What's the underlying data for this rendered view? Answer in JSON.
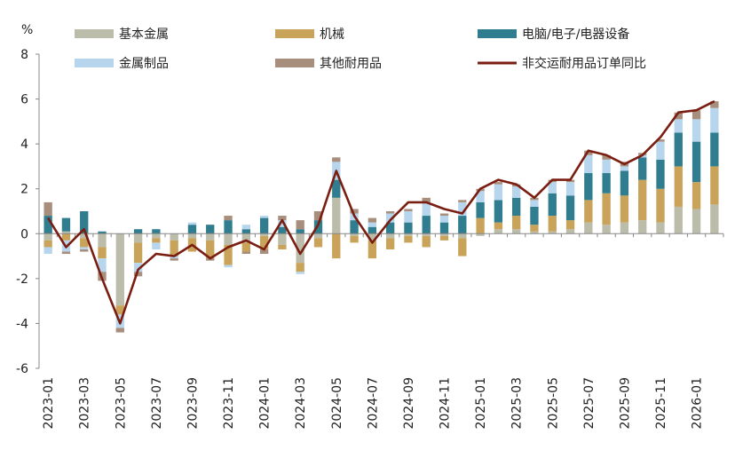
{
  "chart_data": {
    "type": "bar",
    "title": "",
    "xlabel": "",
    "ylabel": "%",
    "ylim": [
      -6,
      8
    ],
    "yticks": [
      8,
      6,
      4,
      2,
      0,
      -2,
      -4,
      -6
    ],
    "categories": [
      "2023-01",
      "2023-02",
      "2023-03",
      "2023-04",
      "2023-05",
      "2023-06",
      "2023-07",
      "2023-08",
      "2023-09",
      "2023-10",
      "2023-11",
      "2023-12",
      "2024-01",
      "2024-02",
      "2024-03",
      "2024-04",
      "2024-05",
      "2024-06",
      "2024-07",
      "2024-08",
      "2024-09",
      "2024-10",
      "2024-11",
      "2024-12",
      "2025-01",
      "2025-02",
      "2025-03",
      "2025-04",
      "2025-05",
      "2025-06",
      "2025-07",
      "2025-08",
      "2025-09",
      "2025-10",
      "2025-11",
      "2025-12",
      "2026-01",
      "2026-02"
    ],
    "x_tick_labels": [
      "2023-01",
      "2023-03",
      "2023-05",
      "2023-07",
      "2023-09",
      "2023-11",
      "2024-01",
      "2024-03",
      "2024-05",
      "2024-07",
      "2024-09",
      "2024-11",
      "2025-01",
      "2025-03",
      "2025-05",
      "2025-07",
      "2025-09",
      "2025-11",
      "2026-01"
    ],
    "legend_position": "top",
    "grid": false,
    "series": [
      {
        "name": "基本金属",
        "kind": "bar",
        "color": "#BCBCAA",
        "values": [
          -0.3,
          0.1,
          -0.2,
          -0.6,
          -3.2,
          -0.4,
          -0.2,
          -0.3,
          -0.2,
          -0.3,
          -0.5,
          -0.4,
          -0.1,
          -0.5,
          -1.3,
          -0.2,
          1.6,
          -0.1,
          -0.3,
          -0.2,
          -0.1,
          -0.1,
          -0.1,
          -0.2,
          -0.1,
          0.2,
          0.2,
          0.1,
          0.1,
          0.2,
          0.5,
          0.4,
          0.5,
          0.6,
          0.5,
          1.2,
          1.1,
          1.3
        ]
      },
      {
        "name": "机械",
        "kind": "bar",
        "color": "#C9A35A",
        "values": [
          -0.3,
          -0.3,
          -0.4,
          -0.5,
          -0.4,
          -0.9,
          -0.2,
          -0.7,
          -0.6,
          -0.8,
          -0.9,
          -0.4,
          -0.6,
          -0.2,
          -0.4,
          -0.4,
          -1.1,
          -0.3,
          -0.8,
          -0.5,
          -0.3,
          -0.5,
          -0.2,
          -0.8,
          0.7,
          0.3,
          0.6,
          0.3,
          0.7,
          0.4,
          1.0,
          1.4,
          1.2,
          1.8,
          1.5,
          1.8,
          1.2,
          1.7
        ]
      },
      {
        "name": "电脑/电子/电器设备",
        "kind": "bar",
        "color": "#2F7D8E",
        "values": [
          0.8,
          0.6,
          1.0,
          0.1,
          0.0,
          0.2,
          0.2,
          0.0,
          0.4,
          0.4,
          0.6,
          0.2,
          0.7,
          0.3,
          0.2,
          0.6,
          0.8,
          0.6,
          0.3,
          0.5,
          0.5,
          0.8,
          0.5,
          0.8,
          0.7,
          1.0,
          0.8,
          0.8,
          1.0,
          1.1,
          1.2,
          0.9,
          1.1,
          1.0,
          1.3,
          1.5,
          1.8,
          1.5
        ]
      },
      {
        "name": "金属制品",
        "kind": "bar",
        "color": "#B7D6EE",
        "values": [
          -0.3,
          -0.5,
          -0.1,
          -0.6,
          -0.6,
          -0.4,
          -0.3,
          -0.1,
          0.1,
          0.0,
          -0.1,
          0.2,
          0.1,
          0.3,
          -0.1,
          0.0,
          0.8,
          0.3,
          0.2,
          0.4,
          0.5,
          0.6,
          0.3,
          0.6,
          0.5,
          0.7,
          0.5,
          0.3,
          0.5,
          0.6,
          0.8,
          0.6,
          0.2,
          0.1,
          0.8,
          0.6,
          1.0,
          1.1
        ]
      },
      {
        "name": "其他耐用品",
        "kind": "bar",
        "color": "#A88E7C",
        "values": [
          0.6,
          -0.1,
          -0.1,
          -0.4,
          -0.2,
          -0.2,
          0.0,
          -0.1,
          0.0,
          -0.1,
          0.2,
          -0.1,
          -0.2,
          0.2,
          0.4,
          0.4,
          0.2,
          0.2,
          0.2,
          0.1,
          0.1,
          0.2,
          0.1,
          0.1,
          0.1,
          0.1,
          0.1,
          0.1,
          0.1,
          0.1,
          0.2,
          0.2,
          0.2,
          0.1,
          0.1,
          0.3,
          0.4,
          0.3
        ]
      },
      {
        "name": "非交运耐用品订单同比",
        "kind": "line",
        "color": "#7A1E12",
        "values": [
          0.7,
          -0.6,
          0.2,
          -2.0,
          -4.0,
          -1.6,
          -0.9,
          -1.0,
          -0.5,
          -1.1,
          -0.6,
          -0.3,
          -0.7,
          0.6,
          -0.9,
          0.4,
          2.8,
          0.8,
          -0.4,
          0.6,
          1.4,
          1.4,
          1.1,
          0.9,
          2.0,
          2.4,
          2.2,
          1.6,
          2.4,
          2.4,
          3.7,
          3.5,
          3.1,
          3.5,
          4.3,
          5.4,
          5.5,
          5.9
        ]
      }
    ]
  }
}
